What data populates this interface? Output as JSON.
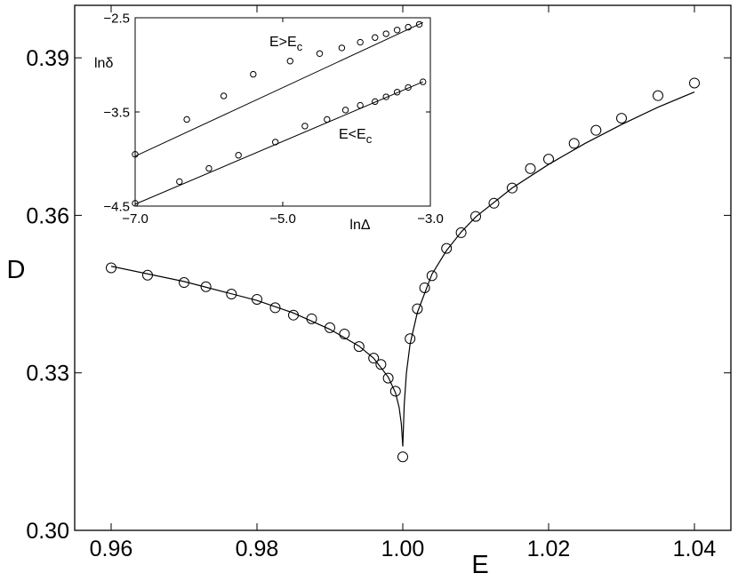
{
  "chart_data": [
    {
      "id": "main",
      "type": "scatter",
      "xlabel": "E",
      "ylabel": "D",
      "xlim": [
        0.955,
        1.045
      ],
      "ylim": [
        0.3,
        0.4
      ],
      "xticks": [
        0.96,
        0.98,
        1.0,
        1.02,
        1.04
      ],
      "xtick_labels": [
        "0.96",
        "0.98",
        "1.00",
        "1.02",
        "1.04"
      ],
      "yticks": [
        0.3,
        0.33,
        0.36,
        0.39
      ],
      "ytick_labels": [
        "0.30",
        "0.33",
        "0.36",
        "0.39"
      ],
      "grid": false,
      "series": [
        {
          "kind": "points",
          "marker": "open-circle",
          "x": [
            0.96,
            0.965,
            0.97,
            0.973,
            0.9765,
            0.98,
            0.9825,
            0.985,
            0.9875,
            0.99,
            0.992,
            0.994,
            0.996,
            0.997,
            0.998,
            0.999,
            1.0,
            1.001,
            1.002,
            1.003,
            1.004,
            1.006,
            1.008,
            1.01,
            1.0125,
            1.015,
            1.0175,
            1.02,
            1.0235,
            1.0265,
            1.03,
            1.035,
            1.04
          ],
          "y": [
            0.35,
            0.3486,
            0.3472,
            0.3464,
            0.345,
            0.344,
            0.3424,
            0.341,
            0.3403,
            0.3386,
            0.3374,
            0.335,
            0.3328,
            0.3316,
            0.329,
            0.3265,
            0.314,
            0.3365,
            0.3422,
            0.3462,
            0.3485,
            0.3537,
            0.3567,
            0.3598,
            0.3623,
            0.3652,
            0.3689,
            0.3707,
            0.3737,
            0.3762,
            0.3785,
            0.3828,
            0.3852
          ]
        },
        {
          "kind": "fit-left",
          "x": [
            0.96,
            0.97,
            0.98,
            0.985,
            0.99,
            0.994,
            0.996,
            0.998,
            0.999,
            0.9995,
            0.9998,
            1.0
          ],
          "y": [
            0.3503,
            0.3474,
            0.3438,
            0.3414,
            0.3383,
            0.3351,
            0.3328,
            0.3292,
            0.3262,
            0.3234,
            0.3203,
            0.316
          ]
        },
        {
          "kind": "fit-right",
          "x": [
            1.0,
            1.0002,
            1.0005,
            1.001,
            1.002,
            1.004,
            1.006,
            1.008,
            1.01,
            1.015,
            1.02,
            1.025,
            1.03,
            1.035,
            1.04
          ],
          "y": [
            0.316,
            0.324,
            0.33,
            0.3355,
            0.3415,
            0.3488,
            0.3533,
            0.3568,
            0.3597,
            0.3652,
            0.3697,
            0.3737,
            0.3773,
            0.3806,
            0.3835
          ]
        }
      ]
    },
    {
      "id": "inset",
      "type": "scatter",
      "xlabel": "lnΔ",
      "ylabel": "lnδ",
      "xlim": [
        -7.0,
        -3.0
      ],
      "ylim": [
        -4.5,
        -2.5
      ],
      "xticks": [
        -7.0,
        -5.0,
        -3.0
      ],
      "xtick_labels": [
        "−7.0",
        "−5.0",
        "−3.0"
      ],
      "yticks": [
        -2.5,
        -3.5,
        -4.5
      ],
      "ytick_labels": [
        "−2.5",
        "−3.5",
        "−4.5"
      ],
      "grid": false,
      "annotations": [
        {
          "base": "E>E",
          "sub": "c",
          "near": "upper line"
        },
        {
          "base": "E<E",
          "sub": "c",
          "near": "lower line"
        }
      ],
      "series": [
        {
          "kind": "points",
          "group": "upper",
          "marker": "open-circle",
          "x": [
            -7.0,
            -6.3,
            -5.8,
            -5.4,
            -4.9,
            -4.5,
            -4.2,
            -3.95,
            -3.75,
            -3.6,
            -3.45,
            -3.3,
            -3.15
          ],
          "y": [
            -3.95,
            -3.58,
            -3.33,
            -3.1,
            -2.96,
            -2.88,
            -2.82,
            -2.76,
            -2.71,
            -2.67,
            -2.63,
            -2.6,
            -2.57
          ]
        },
        {
          "kind": "fit",
          "group": "upper",
          "x": [
            -7.0,
            -3.1
          ],
          "y": [
            -3.97,
            -2.55
          ]
        },
        {
          "kind": "points",
          "group": "lower",
          "marker": "open-circle",
          "x": [
            -7.0,
            -6.4,
            -6.0,
            -5.6,
            -5.1,
            -4.7,
            -4.4,
            -4.15,
            -3.95,
            -3.75,
            -3.6,
            -3.45,
            -3.3,
            -3.1
          ],
          "y": [
            -4.47,
            -4.24,
            -4.1,
            -3.96,
            -3.82,
            -3.65,
            -3.58,
            -3.48,
            -3.43,
            -3.39,
            -3.34,
            -3.29,
            -3.24,
            -3.18
          ]
        },
        {
          "kind": "fit",
          "group": "lower",
          "x": [
            -7.0,
            -3.1
          ],
          "y": [
            -4.48,
            -3.18
          ]
        }
      ]
    }
  ]
}
